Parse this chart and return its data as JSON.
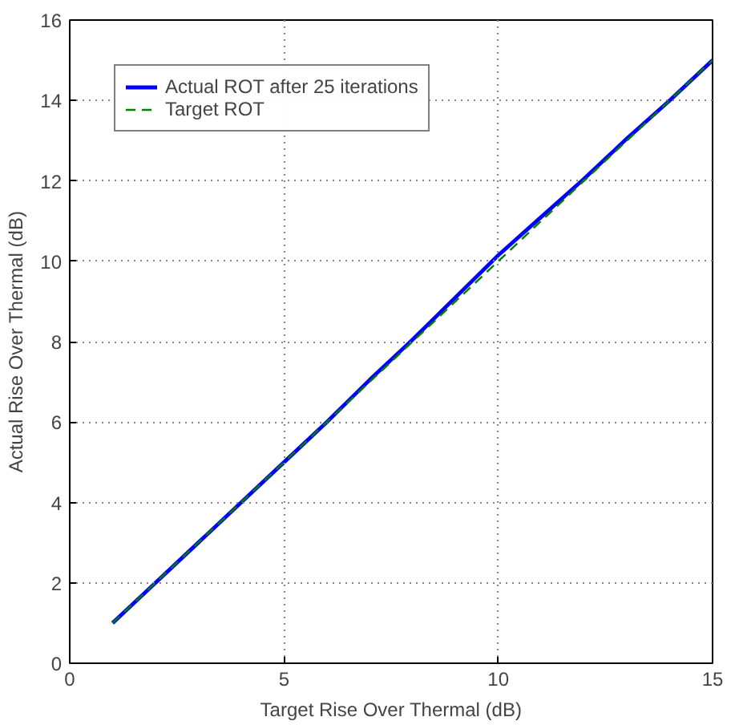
{
  "chart_data": {
    "type": "line",
    "xlabel": "Target Rise Over Thermal (dB)",
    "ylabel": "Actual Rise Over Thermal (dB)",
    "x": [
      1,
      2,
      3,
      4,
      5,
      6,
      7,
      8,
      9,
      10,
      11,
      12,
      13,
      14,
      15
    ],
    "series": [
      {
        "name": "Actual ROT after 25 iterations",
        "color": "#0000ff",
        "line_style": "solid",
        "values": [
          1,
          2,
          3,
          4,
          5,
          6,
          7.05,
          8.05,
          9.1,
          10.15,
          11.1,
          12.05,
          13.05,
          14.0,
          15.0
        ]
      },
      {
        "name": "Target ROT",
        "color": "#008000",
        "line_style": "dashed",
        "values": [
          1,
          2,
          3,
          4,
          5,
          6,
          7,
          8,
          9,
          10,
          11,
          12,
          13,
          14,
          15
        ]
      }
    ],
    "xlim": [
      0,
      15
    ],
    "ylim": [
      0,
      16
    ],
    "xticks": [
      0,
      5,
      10,
      15
    ],
    "yticks": [
      0,
      2,
      4,
      6,
      8,
      10,
      12,
      14,
      16
    ],
    "grid": true,
    "legend": "top left",
    "marker": "none"
  }
}
